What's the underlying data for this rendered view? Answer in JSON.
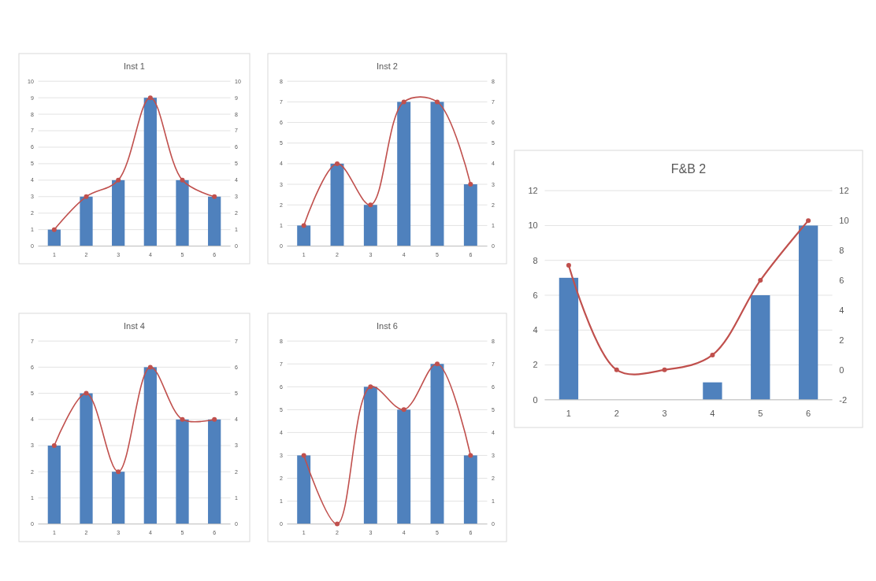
{
  "chart_data": [
    {
      "type": "bar",
      "title": "Inst 1",
      "categories": [
        "1",
        "2",
        "3",
        "4",
        "5",
        "6"
      ],
      "grid": "y",
      "marker": "circle",
      "ylim": [
        0,
        10
      ],
      "yticks": [
        0,
        1,
        2,
        3,
        4,
        5,
        6,
        7,
        8,
        9,
        10
      ],
      "y2lim": [
        0,
        10
      ],
      "y2ticks": [
        0,
        1,
        2,
        3,
        4,
        5,
        6,
        7,
        8,
        9,
        10
      ],
      "series": [
        {
          "type": "bar",
          "color": "#4f81bd",
          "values": [
            1,
            3,
            4,
            9,
            4,
            3
          ]
        },
        {
          "type": "line",
          "axis": "y2",
          "color": "#c0504d",
          "values": [
            1,
            3,
            4,
            9,
            4,
            3
          ]
        }
      ]
    },
    {
      "type": "bar",
      "title": "Inst 2",
      "categories": [
        "1",
        "2",
        "3",
        "4",
        "5",
        "6"
      ],
      "grid": "y",
      "marker": "circle",
      "ylim": [
        0,
        8
      ],
      "yticks": [
        0,
        1,
        2,
        3,
        4,
        5,
        6,
        7,
        8
      ],
      "y2lim": [
        0,
        8
      ],
      "y2ticks": [
        0,
        1,
        2,
        3,
        4,
        5,
        6,
        7,
        8
      ],
      "series": [
        {
          "type": "bar",
          "color": "#4f81bd",
          "values": [
            1,
            4,
            2,
            7,
            7,
            3
          ]
        },
        {
          "type": "line",
          "axis": "y2",
          "color": "#c0504d",
          "values": [
            1,
            4,
            2,
            7,
            7,
            3
          ]
        }
      ]
    },
    {
      "type": "bar",
      "title": "Inst 4",
      "categories": [
        "1",
        "2",
        "3",
        "4",
        "5",
        "6"
      ],
      "grid": "y",
      "marker": "circle",
      "ylim": [
        0,
        7
      ],
      "yticks": [
        0,
        1,
        2,
        3,
        4,
        5,
        6,
        7
      ],
      "y2lim": [
        0,
        7
      ],
      "y2ticks": [
        0,
        1,
        2,
        3,
        4,
        5,
        6,
        7
      ],
      "series": [
        {
          "type": "bar",
          "color": "#4f81bd",
          "values": [
            3,
            5,
            2,
            6,
            4,
            4
          ]
        },
        {
          "type": "line",
          "axis": "y2",
          "color": "#c0504d",
          "values": [
            3,
            5,
            2,
            6,
            4,
            4
          ]
        }
      ]
    },
    {
      "type": "bar",
      "title": "Inst 6",
      "categories": [
        "1",
        "2",
        "3",
        "4",
        "5",
        "6"
      ],
      "grid": "y",
      "marker": "circle",
      "ylim": [
        0,
        8
      ],
      "yticks": [
        0,
        1,
        2,
        3,
        4,
        5,
        6,
        7,
        8
      ],
      "y2lim": [
        0,
        8
      ],
      "y2ticks": [
        0,
        1,
        2,
        3,
        4,
        5,
        6,
        7,
        8
      ],
      "series": [
        {
          "type": "bar",
          "color": "#4f81bd",
          "values": [
            3,
            0,
            6,
            5,
            7,
            3
          ]
        },
        {
          "type": "line",
          "axis": "y2",
          "color": "#c0504d",
          "values": [
            3,
            0,
            6,
            5,
            7,
            3
          ]
        }
      ]
    },
    {
      "type": "bar",
      "title": "F&B 2",
      "categories": [
        "1",
        "2",
        "3",
        "4",
        "5",
        "6"
      ],
      "grid": "y",
      "marker": "circle",
      "ylim": [
        0,
        12
      ],
      "yticks": [
        0,
        2,
        4,
        6,
        8,
        10,
        12
      ],
      "y2lim": [
        -2,
        12
      ],
      "y2ticks": [
        -2,
        0,
        2,
        4,
        6,
        8,
        10,
        12
      ],
      "series": [
        {
          "type": "bar",
          "color": "#4f81bd",
          "values": [
            7,
            0,
            0,
            1,
            6,
            10
          ]
        },
        {
          "type": "line",
          "axis": "y2",
          "color": "#c0504d",
          "values": [
            7,
            0,
            0,
            1,
            6,
            10
          ]
        }
      ]
    }
  ]
}
